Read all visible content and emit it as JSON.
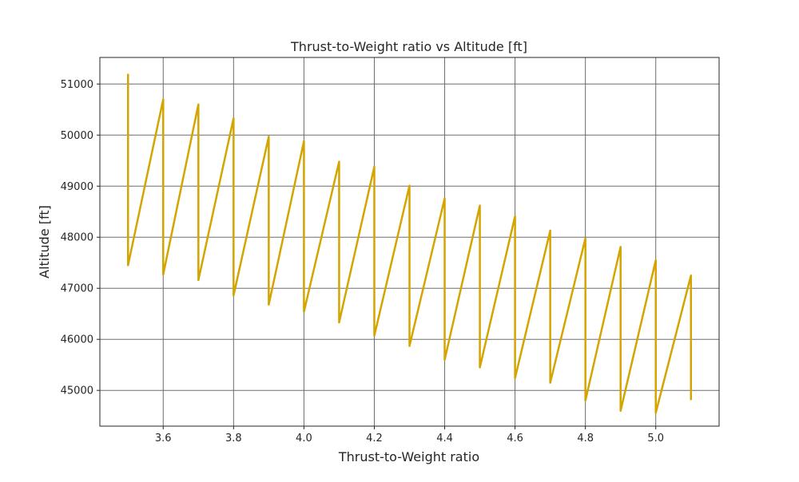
{
  "chart_data": {
    "type": "line",
    "title": "Thrust-to-Weight ratio vs Altitude [ft]",
    "xlabel": "Thrust-to-Weight ratio",
    "ylabel": "Altitude [ft]",
    "xlim": [
      3.42,
      5.18
    ],
    "ylim": [
      44300,
      51520
    ],
    "xticks": [
      3.6,
      3.8,
      4.0,
      4.2,
      4.4,
      4.6,
      4.8,
      5.0
    ],
    "xtick_labels": [
      "3.6",
      "3.8",
      "4.0",
      "4.2",
      "4.4",
      "4.6",
      "4.8",
      "5.0"
    ],
    "yticks": [
      45000,
      46000,
      47000,
      48000,
      49000,
      50000,
      51000
    ],
    "ytick_labels": [
      "45000",
      "46000",
      "47000",
      "48000",
      "49000",
      "50000",
      "51000"
    ],
    "grid": true,
    "legend": "none",
    "series": [
      {
        "color": "#d4a500",
        "x": [
          3.5,
          3.5,
          3.6,
          3.6,
          3.7,
          3.7,
          3.8,
          3.8,
          3.9,
          3.9,
          4.0,
          4.0,
          4.1,
          4.1,
          4.2,
          4.2,
          4.3,
          4.3,
          4.4,
          4.4,
          4.5,
          4.5,
          4.6,
          4.6,
          4.7,
          4.7,
          4.8,
          4.8,
          4.9,
          4.9,
          5.0,
          5.0,
          5.1,
          5.1
        ],
        "y": [
          51200,
          47450,
          50700,
          47270,
          50600,
          47160,
          50330,
          46860,
          49970,
          46680,
          49880,
          46540,
          49480,
          46330,
          49380,
          46070,
          49010,
          45870,
          48760,
          45600,
          48620,
          45450,
          48410,
          45240,
          48130,
          45150,
          47980,
          44800,
          47810,
          44600,
          47550,
          44560,
          47250,
          44810
        ]
      }
    ]
  }
}
